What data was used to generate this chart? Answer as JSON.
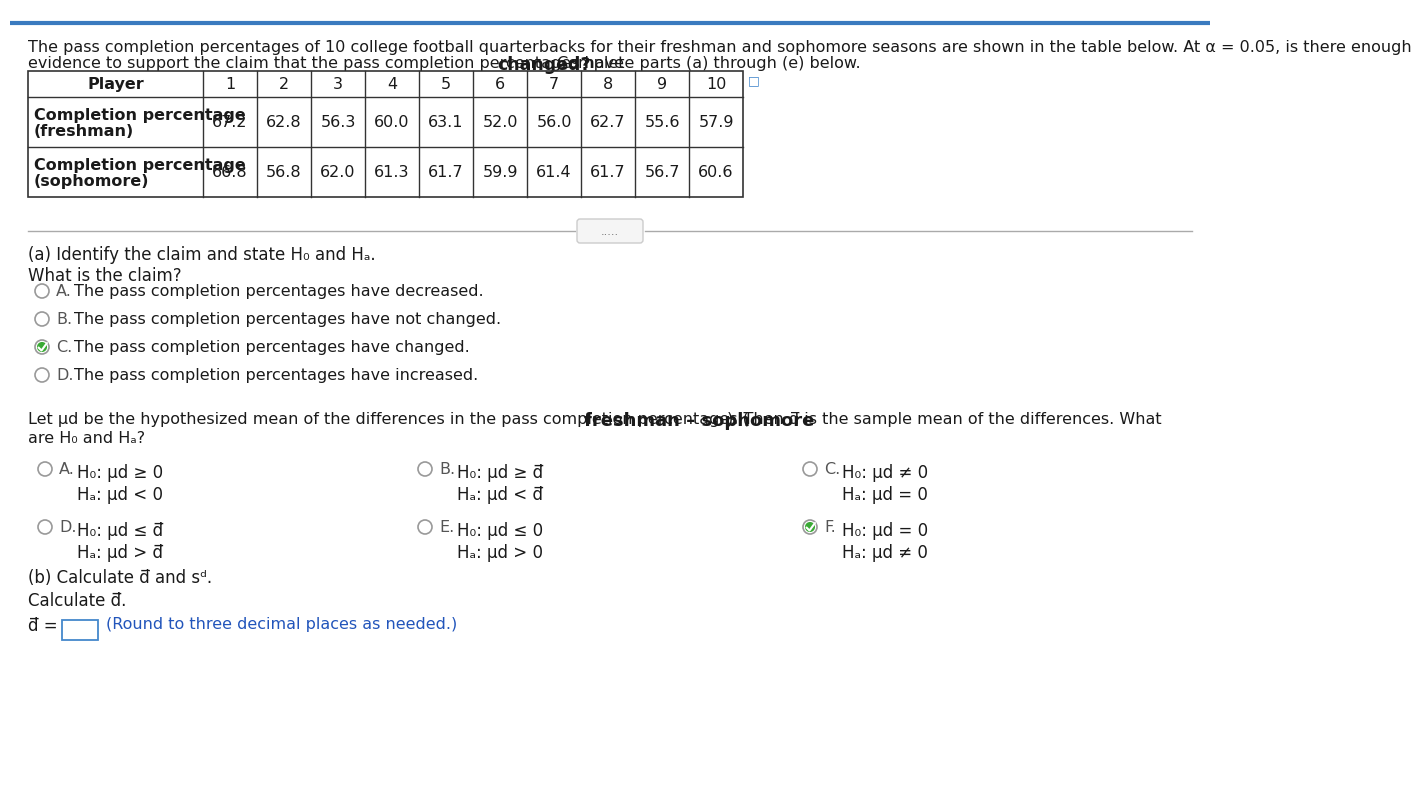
{
  "title_line1": "The pass completion percentages of 10 college football quarterbacks for their freshman and sophomore seasons are shown in the table below. At α = 0.05, is there enough",
  "title_line2_pre": "evidence to support the claim that the pass completion percentages have ",
  "title_line2_bold": "changed?",
  "title_line2_post": " Complete parts (a) through (e) below.",
  "players": [
    1,
    2,
    3,
    4,
    5,
    6,
    7,
    8,
    9,
    10
  ],
  "freshman": [
    67.2,
    62.8,
    56.3,
    60.0,
    63.1,
    52.0,
    56.0,
    62.7,
    55.6,
    57.9
  ],
  "sophomore": [
    66.8,
    56.8,
    62.0,
    61.3,
    61.7,
    59.9,
    61.4,
    61.7,
    56.7,
    60.6
  ],
  "background_color": "#ffffff",
  "text_color": "#1a1a1a",
  "claim_options": [
    {
      "label": "A.",
      "text": "The pass completion percentages have decreased.",
      "selected": false
    },
    {
      "label": "B.",
      "text": "The pass completion percentages have not changed.",
      "selected": false
    },
    {
      "label": "C.",
      "text": "The pass completion percentages have changed.",
      "selected": true
    },
    {
      "label": "D.",
      "text": "The pass completion percentages have increased.",
      "selected": false
    }
  ],
  "hyp_options": [
    {
      "label": "A.",
      "h0": "H₀: μd ≥ 0",
      "ha": "Hₐ: μd < 0",
      "selected": false,
      "col": 0,
      "row": 0
    },
    {
      "label": "B.",
      "h0": "H₀: μd ≥ d̅",
      "ha": "Hₐ: μd < d̅",
      "selected": false,
      "col": 1,
      "row": 0
    },
    {
      "label": "C.",
      "h0": "H₀: μd ≠ 0",
      "ha": "Hₐ: μd = 0",
      "selected": false,
      "col": 2,
      "row": 0
    },
    {
      "label": "D.",
      "h0": "H₀: μd ≤ d̅",
      "ha": "Hₐ: μd > d̅",
      "selected": false,
      "col": 0,
      "row": 1
    },
    {
      "label": "E.",
      "h0": "H₀: μd ≤ 0",
      "ha": "Hₐ: μd > 0",
      "selected": false,
      "col": 1,
      "row": 1
    },
    {
      "label": "F.",
      "h0": "H₀: μd = 0",
      "ha": "Hₐ: μd ≠ 0",
      "selected": true,
      "col": 2,
      "row": 1
    }
  ]
}
